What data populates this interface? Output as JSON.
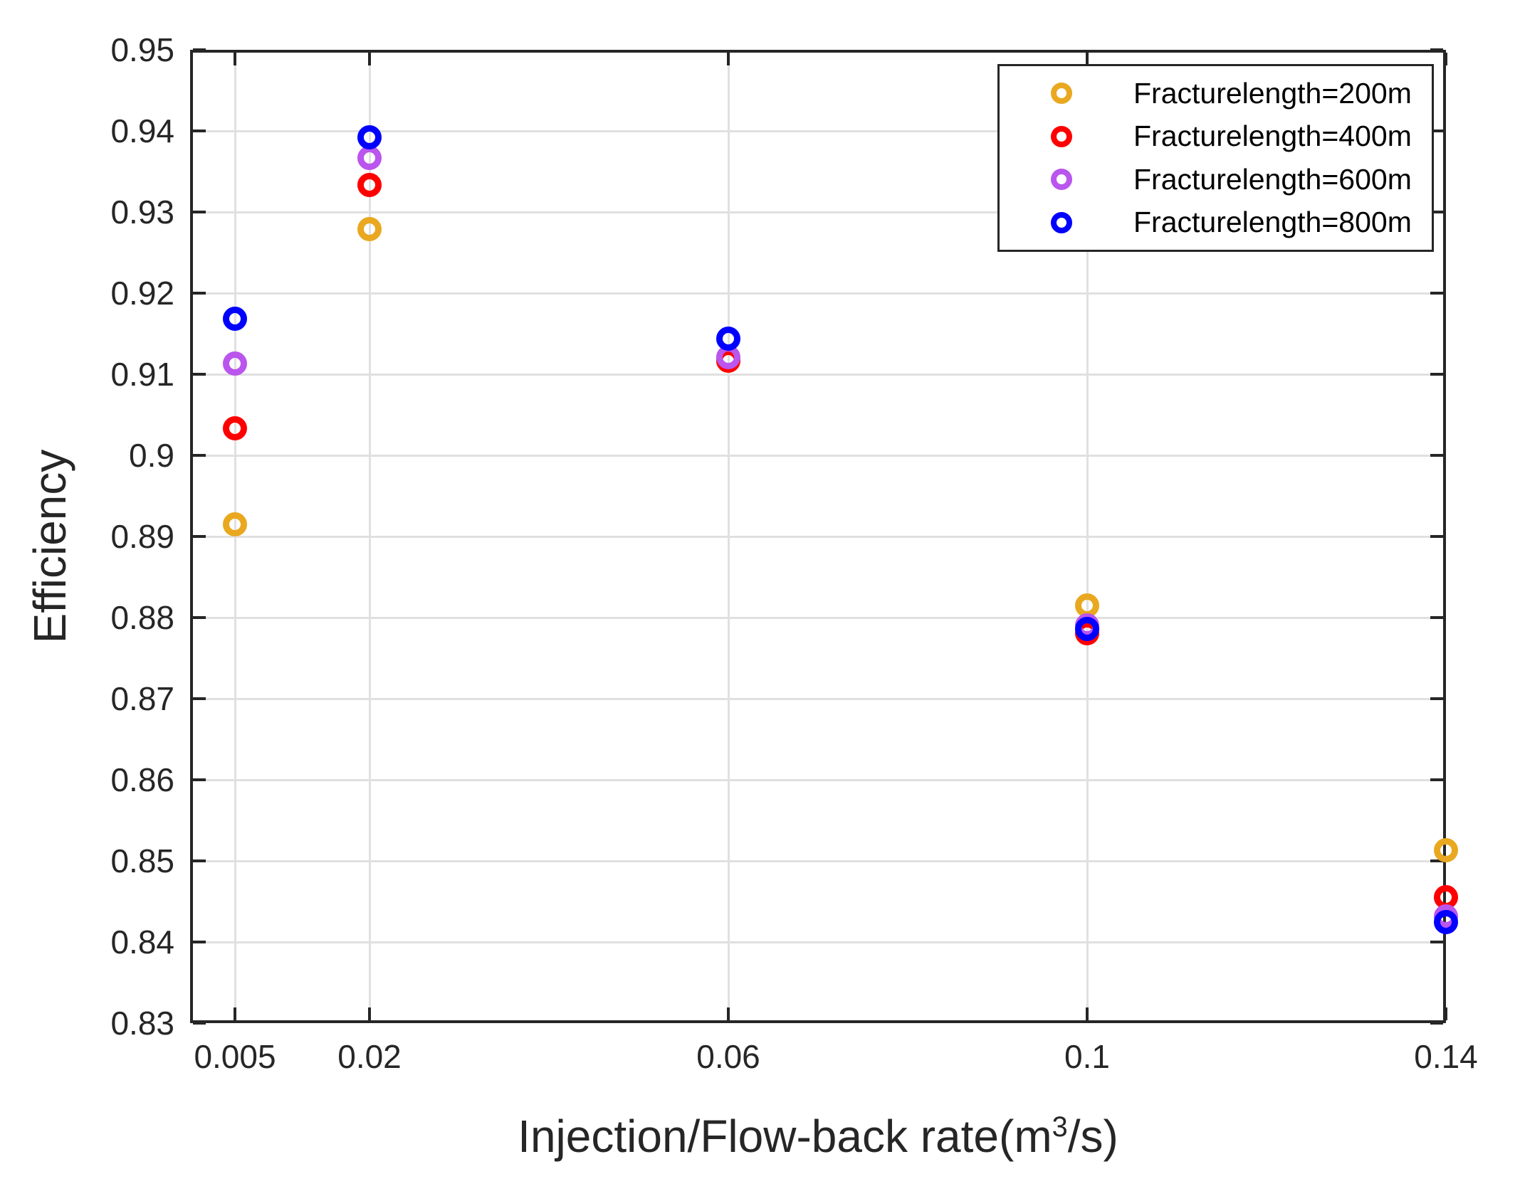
{
  "chart_data": {
    "type": "scatter",
    "title": "",
    "ylabel": "Efficiency",
    "xlabel_prefix": "Injection/Flow-back rate(m",
    "xlabel_sup": "3",
    "xlabel_suffix": "/s)",
    "xlim": [
      0,
      0.14
    ],
    "ylim": [
      0.83,
      0.95
    ],
    "grid": true,
    "legend_position": "top-right",
    "axis_color": "#262626",
    "grid_color": "#e0e0e0",
    "background": "#ffffff",
    "x_ticks": [
      0.005,
      0.02,
      0.06,
      0.1,
      0.14
    ],
    "x_tick_labels": [
      "0.005",
      "0.02",
      "0.06",
      "0.1",
      "0.14"
    ],
    "y_ticks": [
      0.83,
      0.84,
      0.85,
      0.86,
      0.87,
      0.88,
      0.89,
      0.9,
      0.91,
      0.92,
      0.93,
      0.94,
      0.95
    ],
    "y_tick_labels": [
      "0.83",
      "0.84",
      "0.85",
      "0.86",
      "0.87",
      "0.88",
      "0.89",
      "0.9",
      "0.91",
      "0.92",
      "0.93",
      "0.94",
      "0.95"
    ],
    "x": [
      0.005,
      0.02,
      0.06,
      0.1,
      0.14
    ],
    "series": [
      {
        "name": "Fracturelength=200m",
        "color": "#E9A820",
        "values": [
          0.8915,
          0.9279,
          0.9117,
          0.8815,
          0.8513
        ]
      },
      {
        "name": "Fracturelength=400m",
        "color": "#FF0000",
        "values": [
          0.9033,
          0.9333,
          0.9117,
          0.8781,
          0.8455
        ]
      },
      {
        "name": "Fracturelength=600m",
        "color": "#BA55EE",
        "values": [
          0.9113,
          0.9367,
          0.9121,
          0.879,
          0.8432
        ]
      },
      {
        "name": "Fracturelength=800m",
        "color": "#0000FF",
        "values": [
          0.9168,
          0.9392,
          0.9144,
          0.8786,
          0.8425
        ]
      }
    ]
  }
}
